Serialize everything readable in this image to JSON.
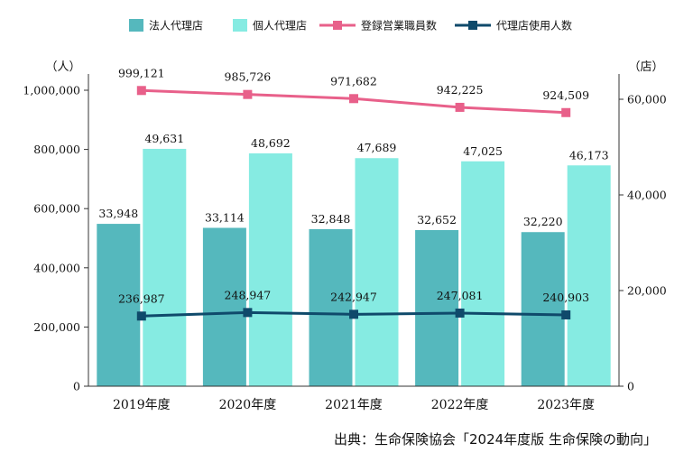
{
  "chart_data": {
    "type": "bar",
    "categories": [
      "2019年度",
      "2020年度",
      "2021年度",
      "2022年度",
      "2023年度"
    ],
    "series": [
      {
        "name": "法人代理店",
        "type": "bar",
        "axis": "right",
        "color": "#55b8bd",
        "values": [
          33948,
          33114,
          32848,
          32652,
          32220
        ],
        "labels": [
          "33,948",
          "33,114",
          "32,848",
          "32,652",
          "32,220"
        ]
      },
      {
        "name": "個人代理店",
        "type": "bar",
        "axis": "right",
        "color": "#86ebe2",
        "values": [
          49631,
          48692,
          47689,
          47025,
          46173
        ],
        "labels": [
          "49,631",
          "48,692",
          "47,689",
          "47,025",
          "46,173"
        ]
      },
      {
        "name": "登録営業職員数",
        "type": "line",
        "axis": "left",
        "color": "#e8608a",
        "values": [
          999121,
          985726,
          971682,
          942225,
          924509
        ],
        "labels": [
          "999,121",
          "985,726",
          "971,682",
          "942,225",
          "924,509"
        ]
      },
      {
        "name": "代理店使用人数",
        "type": "line",
        "axis": "left",
        "color": "#0f4a6b",
        "values": [
          236987,
          248947,
          242947,
          247081,
          240903
        ],
        "labels": [
          "236,987",
          "248,947",
          "242,947",
          "247,081",
          "240,903"
        ]
      }
    ],
    "left_axis": {
      "unit": "（人）",
      "min": 0,
      "max": 1000000,
      "ticks": [
        0,
        200000,
        400000,
        600000,
        800000,
        1000000
      ],
      "tick_labels": [
        "0",
        "200,000",
        "400,000",
        "600,000",
        "800,000",
        "1,000,000"
      ]
    },
    "right_axis": {
      "unit": "（店）",
      "min": 0,
      "max": 60000,
      "ticks": [
        0,
        20000,
        40000,
        60000
      ],
      "tick_labels": [
        "0",
        "20,000",
        "40,000",
        "60,000"
      ]
    },
    "legend_position": "top",
    "grid": false
  },
  "source": "出典：生命保険協会「2024年度版 生命保険の動向」"
}
